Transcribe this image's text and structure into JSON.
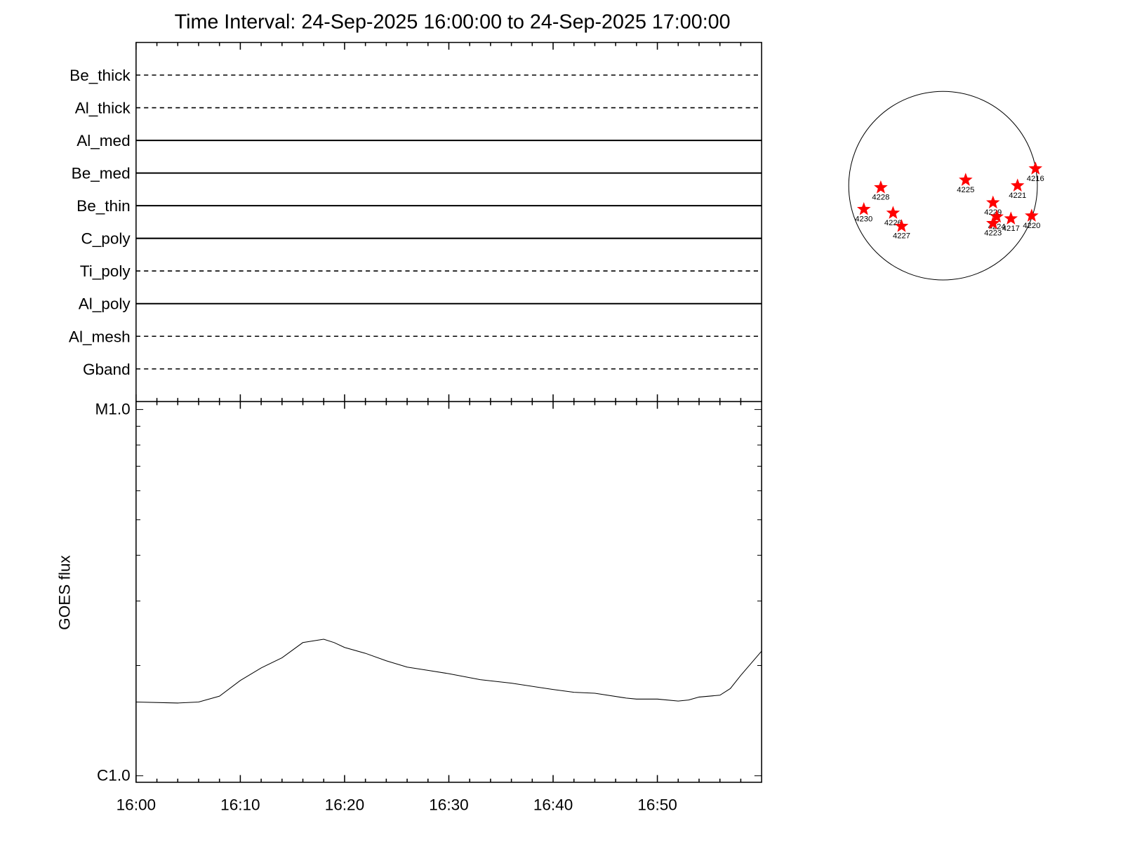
{
  "chart_data": [
    {
      "type": "filter-states",
      "title": "Time Interval: 24-Sep-2025 16:00:00 to 24-Sep-2025 17:00:00",
      "categories": [
        "Be_thick",
        "Al_thick",
        "Al_med",
        "Be_med",
        "Be_thin",
        "C_poly",
        "Ti_poly",
        "Al_poly",
        "Al_mesh",
        "Gband"
      ],
      "styles": [
        "dashed",
        "dashed",
        "solid",
        "solid",
        "solid",
        "solid",
        "dashed",
        "solid",
        "dashed",
        "dashed"
      ]
    },
    {
      "type": "line",
      "ylabel": "GOES flux",
      "log": true,
      "color": "#000000",
      "xlim": [
        "16:00",
        "17:00"
      ],
      "xticks": [
        "16:00",
        "16:10",
        "16:20",
        "16:30",
        "16:40",
        "16:50"
      ],
      "xminorticks": [
        "16:02",
        "16:04",
        "16:06",
        "16:08",
        "16:12",
        "16:14",
        "16:16",
        "16:18",
        "16:22",
        "16:24",
        "16:26",
        "16:28",
        "16:32",
        "16:34",
        "16:36",
        "16:38",
        "16:42",
        "16:44",
        "16:46",
        "16:48",
        "16:52",
        "16:54",
        "16:56",
        "16:58"
      ],
      "ylim": [
        1e-06,
        1e-05
      ],
      "yticks": [
        {
          "value": 1e-06,
          "label": "C1.0"
        },
        {
          "value": 1e-05,
          "label": "M1.0"
        }
      ],
      "yminorticks": [
        2e-06,
        3e-06,
        4e-06,
        5e-06,
        6e-06,
        7e-06,
        8e-06,
        9e-06
      ],
      "x": [
        "16:00",
        "16:04",
        "16:06",
        "16:08",
        "16:10",
        "16:12",
        "16:14",
        "16:16",
        "16:18",
        "16:19",
        "16:20",
        "16:22",
        "16:24",
        "16:26",
        "16:28",
        "16:30",
        "16:33",
        "16:36",
        "16:40",
        "16:42",
        "16:44",
        "16:47",
        "16:48",
        "16:50",
        "16:52",
        "16:53",
        "16:54",
        "16:56",
        "16:57",
        "16:58",
        "17:00"
      ],
      "values": [
        1.59e-06,
        1.58e-06,
        1.59e-06,
        1.65e-06,
        1.82e-06,
        1.97e-06,
        2.1e-06,
        2.31e-06,
        2.36e-06,
        2.31e-06,
        2.24e-06,
        2.16e-06,
        2.06e-06,
        1.98e-06,
        1.94e-06,
        1.9e-06,
        1.83e-06,
        1.79e-06,
        1.72e-06,
        1.69e-06,
        1.68e-06,
        1.63e-06,
        1.62e-06,
        1.62e-06,
        1.6e-06,
        1.61e-06,
        1.64e-06,
        1.66e-06,
        1.73e-06,
        1.88e-06,
        2.19e-06
      ]
    },
    {
      "type": "disk",
      "color": "#ff0000",
      "xlim": [
        -1,
        1
      ],
      "ylim": [
        -1,
        1
      ],
      "labels": [
        "4216",
        "4228",
        "4225",
        "4221",
        "4229",
        "4230",
        "4226",
        "4227",
        "4224",
        "4217",
        "4220",
        "4223"
      ],
      "x": [
        0.98,
        -0.66,
        0.24,
        0.79,
        0.53,
        -0.84,
        -0.53,
        -0.44,
        0.57,
        0.72,
        0.94,
        0.53
      ],
      "y": [
        0.18,
        -0.02,
        0.06,
        0.0,
        -0.18,
        -0.25,
        -0.29,
        -0.43,
        -0.33,
        -0.35,
        -0.32,
        -0.4
      ]
    }
  ]
}
